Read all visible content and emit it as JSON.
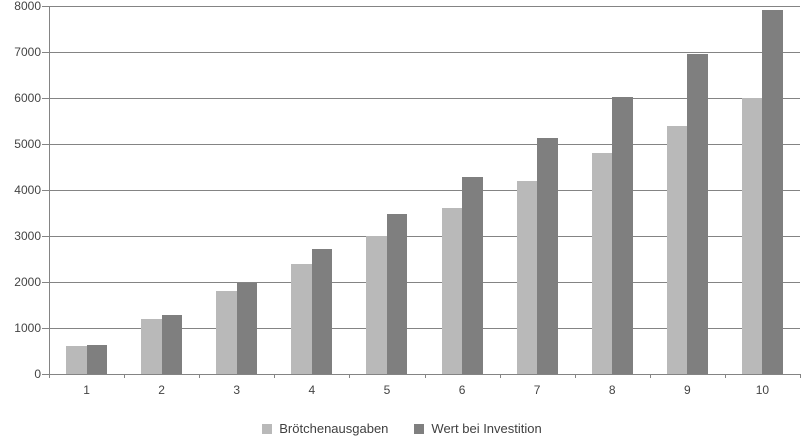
{
  "chart_data": {
    "type": "bar",
    "title": "",
    "xlabel": "",
    "ylabel": "",
    "categories": [
      "1",
      "2",
      "3",
      "4",
      "5",
      "6",
      "7",
      "8",
      "9",
      "10"
    ],
    "series": [
      {
        "name": "Brötchenausgaben",
        "color": "#b9b9b9",
        "values": [
          600,
          1200,
          1800,
          2400,
          3000,
          3600,
          4200,
          4800,
          5400,
          6000
        ]
      },
      {
        "name": "Wert bei Investition",
        "color": "#7f7f7f",
        "values": [
          630,
          1292,
          1986,
          2715,
          3481,
          4285,
          5129,
          6016,
          6947,
          7924
        ]
      }
    ],
    "ylim": [
      0,
      8000
    ],
    "yticks": [
      0,
      1000,
      2000,
      3000,
      4000,
      5000,
      6000,
      7000,
      8000
    ],
    "grid": true,
    "legend_position": "bottom",
    "axis_color": "#848484",
    "gridline_color": "#848484",
    "tick_label_color": "#444444",
    "background_color": "#ffffff"
  }
}
